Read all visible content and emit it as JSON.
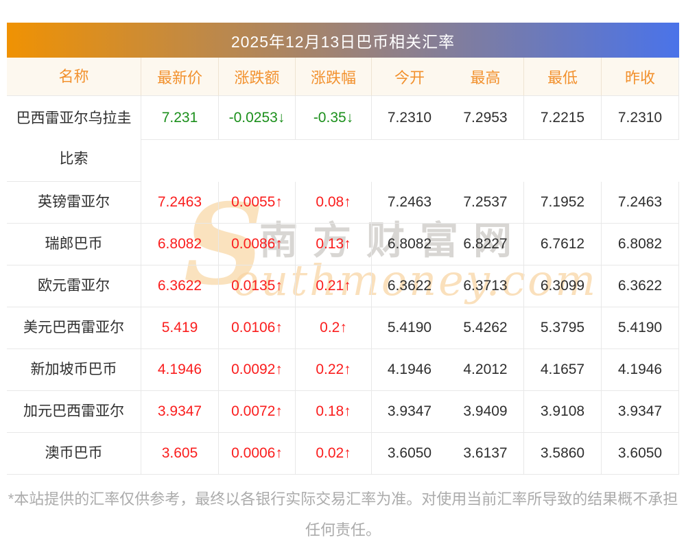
{
  "banner": {
    "title": "2025年12月13日巴币相关汇率"
  },
  "table": {
    "columns": [
      "名称",
      "最新价",
      "涨跌额",
      "涨跌幅",
      "今开",
      "最高",
      "最低",
      "昨收"
    ],
    "rows": [
      {
        "name": "巴西雷亚尔乌拉圭比索",
        "latest": "7.231",
        "change": "-0.0253↓",
        "change_pct": "-0.35↓",
        "open": "7.2310",
        "high": "7.2953",
        "low": "7.2215",
        "prev_close": "7.2310",
        "trend": "down"
      },
      {
        "name": "英镑雷亚尔",
        "latest": "7.2463",
        "change": "0.0055↑",
        "change_pct": "0.08↑",
        "open": "7.2463",
        "high": "7.2537",
        "low": "7.1952",
        "prev_close": "7.2463",
        "trend": "up"
      },
      {
        "name": "瑞郎巴币",
        "latest": "6.8082",
        "change": "0.0086↑",
        "change_pct": "0.13↑",
        "open": "6.8082",
        "high": "6.8227",
        "low": "6.7612",
        "prev_close": "6.8082",
        "trend": "up"
      },
      {
        "name": "欧元雷亚尔",
        "latest": "6.3622",
        "change": "0.0135↑",
        "change_pct": "0.21↑",
        "open": "6.3622",
        "high": "6.3713",
        "low": "6.3099",
        "prev_close": "6.3622",
        "trend": "up"
      },
      {
        "name": "美元巴西雷亚尔",
        "latest": "5.419",
        "change": "0.0106↑",
        "change_pct": "0.2↑",
        "open": "5.4190",
        "high": "5.4262",
        "low": "5.3795",
        "prev_close": "5.4190",
        "trend": "up"
      },
      {
        "name": "新加坡币巴币",
        "latest": "4.1946",
        "change": "0.0092↑",
        "change_pct": "0.22↑",
        "open": "4.1946",
        "high": "4.2012",
        "low": "4.1657",
        "prev_close": "4.1946",
        "trend": "up"
      },
      {
        "name": "加元巴西雷亚尔",
        "latest": "3.9347",
        "change": "0.0072↑",
        "change_pct": "0.18↑",
        "open": "3.9347",
        "high": "3.9409",
        "low": "3.9108",
        "prev_close": "3.9347",
        "trend": "up"
      },
      {
        "name": "澳币巴币",
        "latest": "3.605",
        "change": "0.0006↑",
        "change_pct": "0.02↑",
        "open": "3.6050",
        "high": "3.6137",
        "low": "3.5860",
        "prev_close": "3.6050",
        "trend": "up"
      }
    ]
  },
  "watermark": {
    "s_glyph": "S",
    "cjk": "南方财富网",
    "script": "outhmoney.com"
  },
  "footer": {
    "disclaimer": "*本站提供的汇率仅供参考，最终以各银行实际交易汇率为准。对使用当前汇率所导致的结果概不承担任何责任。"
  },
  "colors": {
    "banner_gradient_from": "#f09203",
    "banner_gradient_to": "#4a73e9",
    "header_row_bg": "#fdf8ef",
    "header_text": "#f2912e",
    "up_red": "#fa1d1d",
    "down_green": "#1b8f1b",
    "value_text": "#2e2e2e",
    "border": "#e8e8e8",
    "footer_text": "#ababab"
  }
}
